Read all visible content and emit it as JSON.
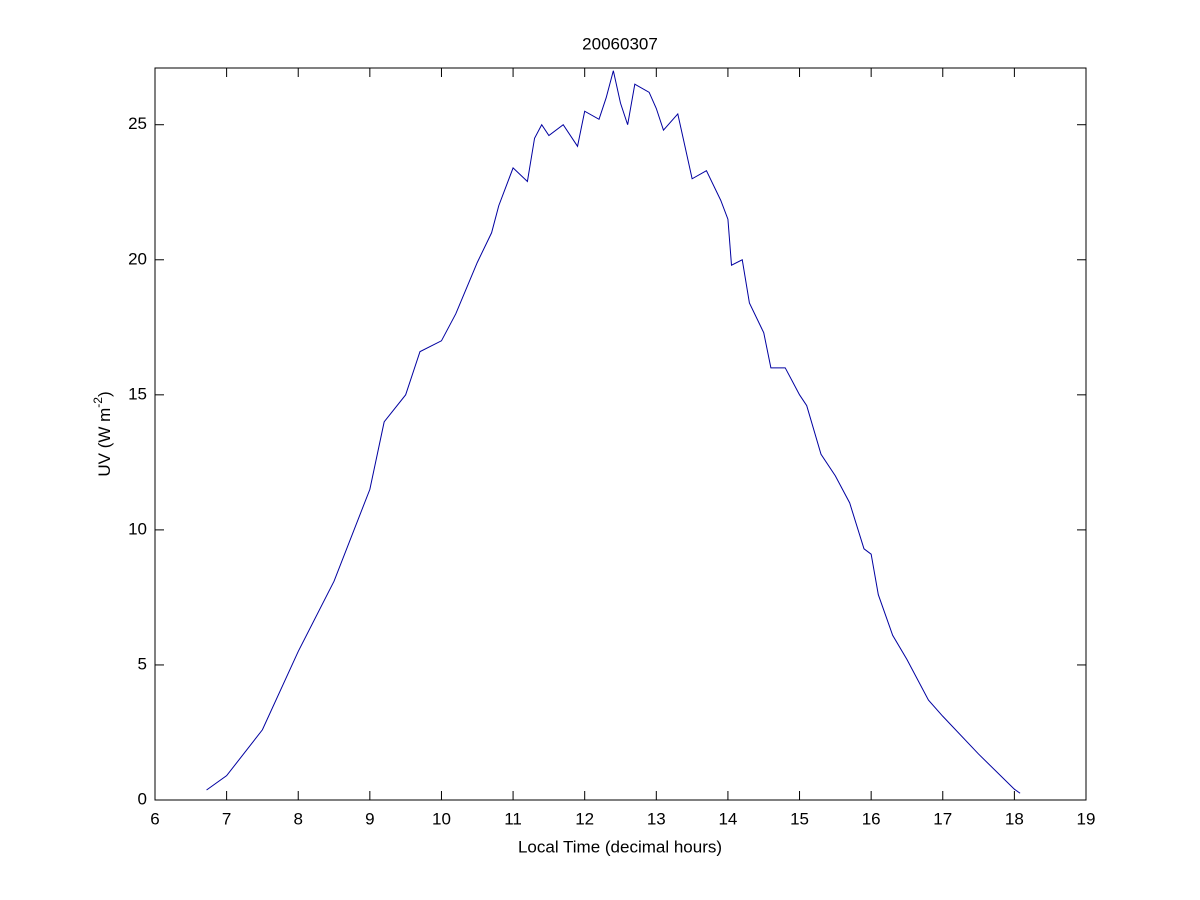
{
  "chart_data": {
    "type": "line",
    "title": "20060307",
    "xlabel": "Local Time (decimal hours)",
    "ylabel": [
      "UV (W m",
      "-2",
      ")"
    ],
    "x": [
      6.72,
      7.0,
      7.5,
      8.0,
      8.5,
      9.0,
      9.2,
      9.5,
      9.7,
      10.0,
      10.2,
      10.5,
      10.7,
      10.8,
      11.0,
      11.2,
      11.3,
      11.4,
      11.5,
      11.7,
      11.9,
      12.0,
      12.2,
      12.3,
      12.4,
      12.5,
      12.6,
      12.7,
      12.9,
      13.0,
      13.1,
      13.3,
      13.5,
      13.7,
      13.9,
      14.0,
      14.05,
      14.2,
      14.3,
      14.5,
      14.6,
      14.8,
      15.0,
      15.1,
      15.3,
      15.5,
      15.7,
      15.9,
      16.0,
      16.1,
      16.3,
      16.5,
      16.8,
      17.0,
      17.5,
      18.0,
      18.08
    ],
    "values": [
      0.37,
      0.9,
      2.6,
      5.5,
      8.1,
      11.5,
      14.0,
      15.0,
      16.6,
      17.0,
      18.0,
      19.9,
      21.0,
      22.0,
      23.4,
      22.9,
      24.5,
      25.0,
      24.6,
      25.0,
      24.2,
      25.5,
      25.2,
      26.0,
      27.0,
      25.8,
      25.0,
      26.5,
      26.2,
      25.6,
      24.8,
      25.4,
      23.0,
      23.3,
      22.2,
      21.5,
      19.8,
      20.0,
      18.4,
      17.3,
      16.0,
      16.0,
      15.0,
      14.6,
      12.8,
      12.0,
      11.0,
      9.3,
      9.1,
      7.6,
      6.1,
      5.2,
      3.7,
      3.1,
      1.7,
      0.4,
      0.25
    ],
    "color": "#0000a0",
    "xlim": [
      6,
      19
    ],
    "xticks": [
      6,
      7,
      8,
      9,
      10,
      11,
      12,
      13,
      14,
      15,
      16,
      17,
      18,
      19
    ],
    "ylim": [
      0,
      27.1
    ],
    "yticks": [
      0,
      5,
      10,
      15,
      20,
      25
    ],
    "grid": false
  }
}
